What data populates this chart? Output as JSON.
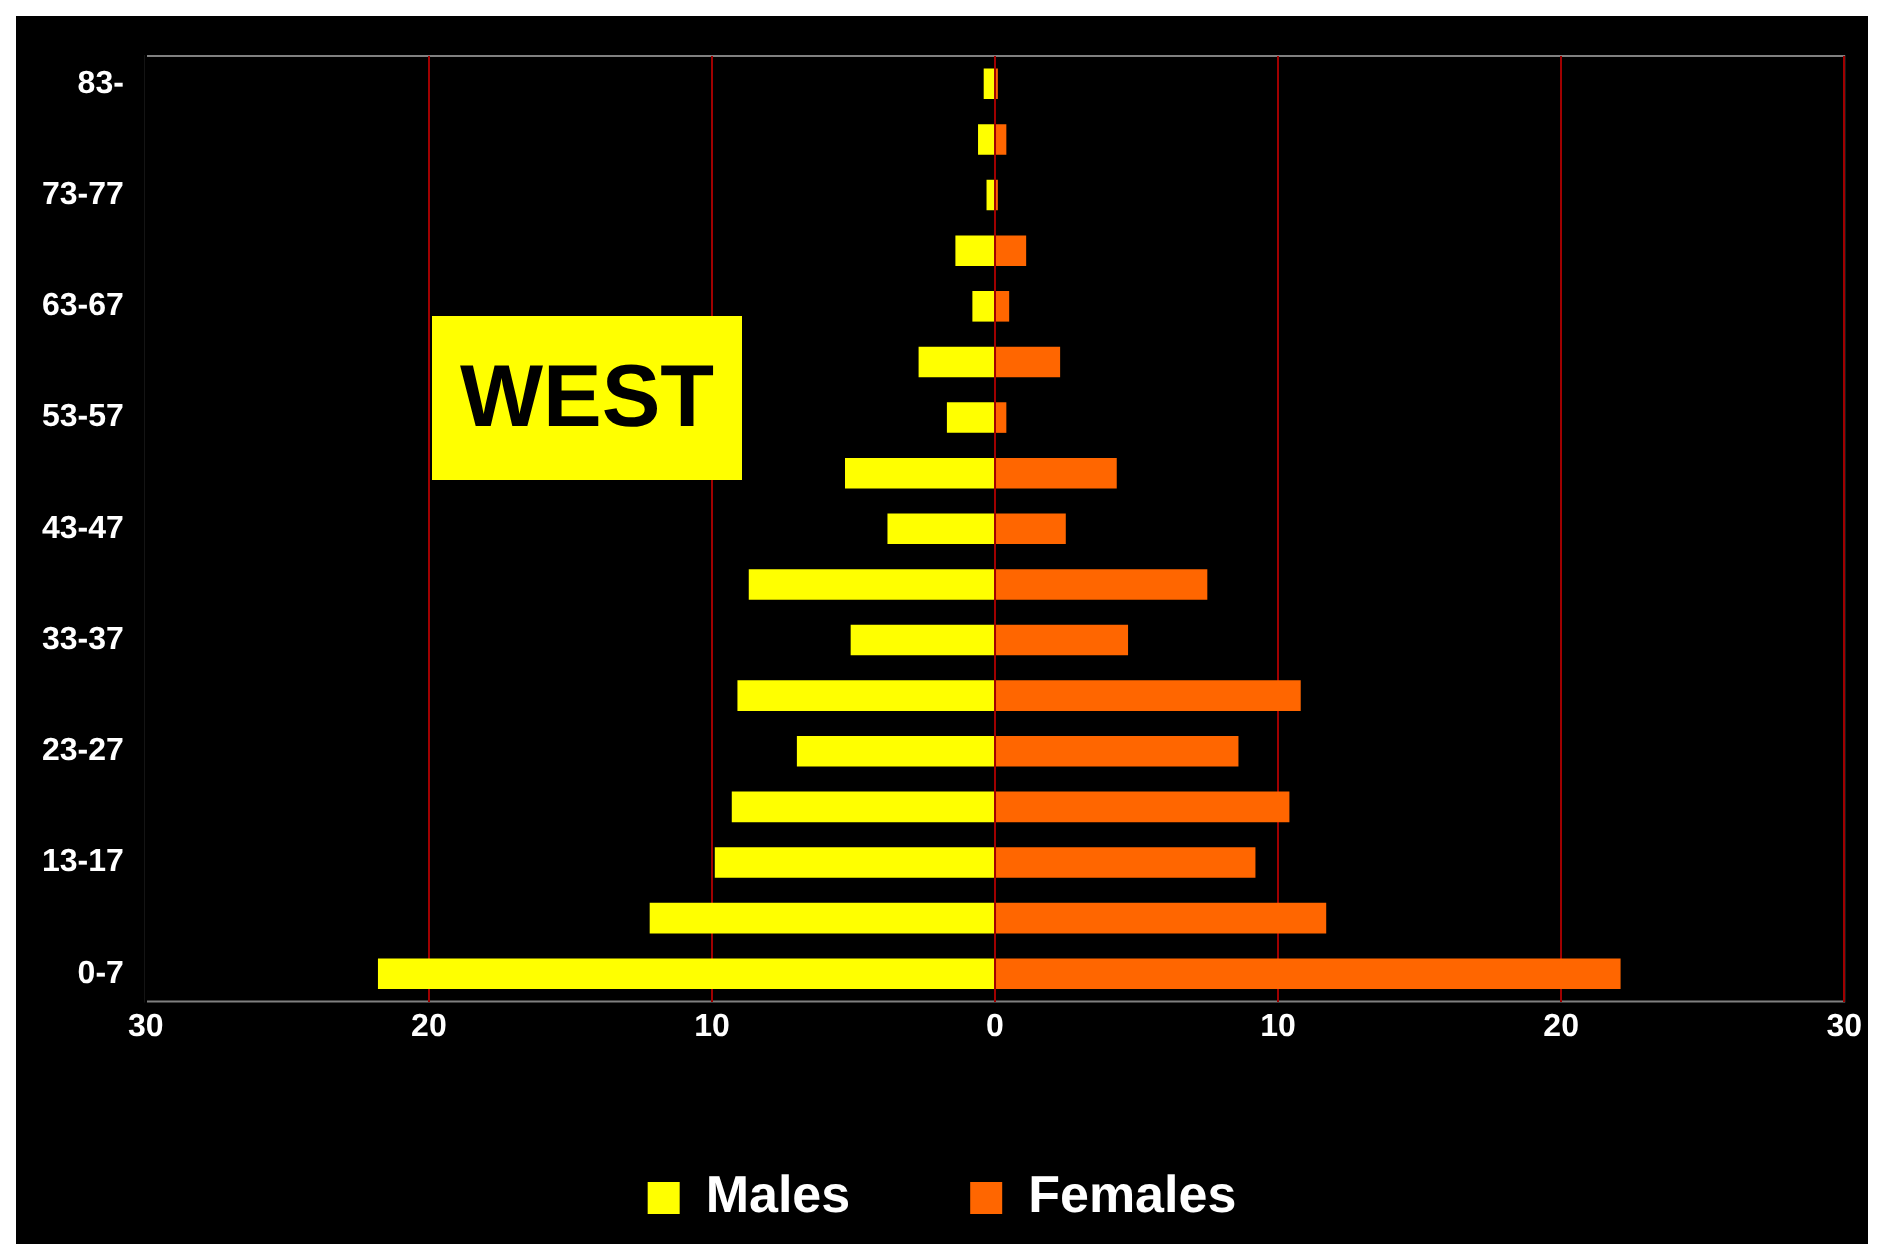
{
  "chart_data": {
    "type": "bar",
    "orientation": "horizontal",
    "stacked": true,
    "categories": [
      "83-",
      null,
      "73-77",
      null,
      "63-67",
      null,
      "53-57",
      null,
      "43-47",
      null,
      "33-37",
      null,
      "23-27",
      null,
      "13-17",
      null,
      "0-7"
    ],
    "series": [
      {
        "name": "Males",
        "color": "#ffff00",
        "values": [
          -0.4,
          -0.6,
          -0.3,
          -1.4,
          -0.8,
          -2.7,
          -1.7,
          -5.3,
          -3.8,
          -8.7,
          -5.1,
          -9.1,
          -7.0,
          -9.3,
          -9.9,
          -12.2,
          -21.8
        ]
      },
      {
        "name": "Females",
        "color": "#ff6600",
        "values": [
          0.1,
          0.4,
          0.1,
          1.1,
          0.5,
          2.3,
          0.4,
          4.3,
          2.5,
          7.5,
          4.7,
          10.8,
          8.6,
          10.4,
          9.2,
          11.7,
          22.1
        ]
      }
    ],
    "xlim": [
      -30,
      30
    ],
    "xticks": [
      {
        "value": -30,
        "label": "30"
      },
      {
        "value": -20,
        "label": "20"
      },
      {
        "value": -10,
        "label": "10"
      },
      0,
      10,
      20,
      30
    ],
    "grid": "x",
    "legend": "bottom",
    "annotations": [
      "WEST"
    ]
  }
}
